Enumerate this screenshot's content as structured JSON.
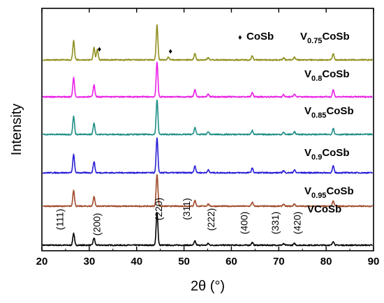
{
  "chart_data": {
    "type": "line",
    "title": "",
    "xlabel": "2θ (°)",
    "ylabel": "Intensity",
    "xlim": [
      20,
      90
    ],
    "xticks": [
      20,
      30,
      40,
      50,
      60,
      70,
      80,
      90
    ],
    "y_ticks_shown": false,
    "grid": false,
    "legend": {
      "marker": "♦",
      "label": "CoSb"
    },
    "series": [
      {
        "name": "VCoSb",
        "name_parts": {
          "base": "V",
          "sub": "",
          "tail": "CoSb"
        },
        "color": "#000000",
        "peaks": [
          {
            "x": 26.7,
            "h": 0.36
          },
          {
            "x": 31.0,
            "h": 0.22
          },
          {
            "x": 44.3,
            "h": 1.0
          },
          {
            "x": 52.3,
            "h": 0.12
          },
          {
            "x": 55.1,
            "h": 0.05
          },
          {
            "x": 64.4,
            "h": 0.08
          },
          {
            "x": 71.0,
            "h": 0.04
          },
          {
            "x": 73.3,
            "h": 0.05
          },
          {
            "x": 81.5,
            "h": 0.12
          }
        ]
      },
      {
        "name": "V0.95CoSb",
        "name_parts": {
          "base": "V",
          "sub": "0.95",
          "tail": "CoSb"
        },
        "color": "#a04a2a",
        "peaks": [
          {
            "x": 26.7,
            "h": 0.5
          },
          {
            "x": 31.0,
            "h": 0.3
          },
          {
            "x": 44.3,
            "h": 1.0
          },
          {
            "x": 52.3,
            "h": 0.18
          },
          {
            "x": 55.1,
            "h": 0.07
          },
          {
            "x": 64.4,
            "h": 0.12
          },
          {
            "x": 71.0,
            "h": 0.06
          },
          {
            "x": 73.3,
            "h": 0.07
          },
          {
            "x": 81.5,
            "h": 0.16
          }
        ]
      },
      {
        "name": "V0.9CoSb",
        "name_parts": {
          "base": "V",
          "sub": "0.9",
          "tail": "CoSb"
        },
        "color": "#2a1fd6",
        "peaks": [
          {
            "x": 26.7,
            "h": 0.52
          },
          {
            "x": 31.0,
            "h": 0.32
          },
          {
            "x": 44.3,
            "h": 1.0
          },
          {
            "x": 52.3,
            "h": 0.2
          },
          {
            "x": 55.1,
            "h": 0.08
          },
          {
            "x": 64.4,
            "h": 0.13
          },
          {
            "x": 71.0,
            "h": 0.06
          },
          {
            "x": 73.3,
            "h": 0.08
          },
          {
            "x": 81.5,
            "h": 0.19
          }
        ]
      },
      {
        "name": "V0.85CoSb",
        "name_parts": {
          "base": "V",
          "sub": "0.85",
          "tail": "CoSb"
        },
        "color": "#1f8f86",
        "peaks": [
          {
            "x": 26.7,
            "h": 0.52
          },
          {
            "x": 31.0,
            "h": 0.33
          },
          {
            "x": 44.3,
            "h": 1.0
          },
          {
            "x": 52.3,
            "h": 0.2
          },
          {
            "x": 55.1,
            "h": 0.08
          },
          {
            "x": 64.4,
            "h": 0.12
          },
          {
            "x": 71.0,
            "h": 0.06
          },
          {
            "x": 73.3,
            "h": 0.08
          },
          {
            "x": 81.5,
            "h": 0.18
          }
        ]
      },
      {
        "name": "V0.8CoSb",
        "name_parts": {
          "base": "V",
          "sub": "0.8",
          "tail": "CoSb"
        },
        "color": "#ea1fe6",
        "peaks": [
          {
            "x": 26.7,
            "h": 0.55
          },
          {
            "x": 31.0,
            "h": 0.35
          },
          {
            "x": 44.3,
            "h": 1.0
          },
          {
            "x": 52.3,
            "h": 0.2
          },
          {
            "x": 55.1,
            "h": 0.08
          },
          {
            "x": 64.4,
            "h": 0.12
          },
          {
            "x": 71.0,
            "h": 0.06
          },
          {
            "x": 73.3,
            "h": 0.08
          },
          {
            "x": 81.5,
            "h": 0.2
          }
        ]
      },
      {
        "name": "V0.75CoSb",
        "name_parts": {
          "base": "V",
          "sub": "0.75",
          "tail": "CoSb"
        },
        "color": "#8f8f1f",
        "peaks": [
          {
            "x": 26.7,
            "h": 0.55
          },
          {
            "x": 31.0,
            "h": 0.35
          },
          {
            "x": 31.7,
            "h": 0.3
          },
          {
            "x": 44.3,
            "h": 1.0
          },
          {
            "x": 46.7,
            "h": 0.08
          },
          {
            "x": 52.3,
            "h": 0.18
          },
          {
            "x": 55.1,
            "h": 0.07
          },
          {
            "x": 64.4,
            "h": 0.12
          },
          {
            "x": 71.0,
            "h": 0.06
          },
          {
            "x": 73.3,
            "h": 0.08
          },
          {
            "x": 81.5,
            "h": 0.18
          }
        ],
        "impurity_markers": [
          31.7,
          46.7
        ]
      }
    ],
    "annotations": [
      {
        "text": "(111)",
        "x": 26.7
      },
      {
        "text": "(200)",
        "x": 31.0
      },
      {
        "text": "(220)",
        "x": 44.3
      },
      {
        "text": "(311)",
        "x": 52.3
      },
      {
        "text": "(222)",
        "x": 55.1
      },
      {
        "text": "(400)",
        "x": 64.4
      },
      {
        "text": "(331)",
        "x": 71.0
      },
      {
        "text": "(420)",
        "x": 73.3
      }
    ]
  }
}
